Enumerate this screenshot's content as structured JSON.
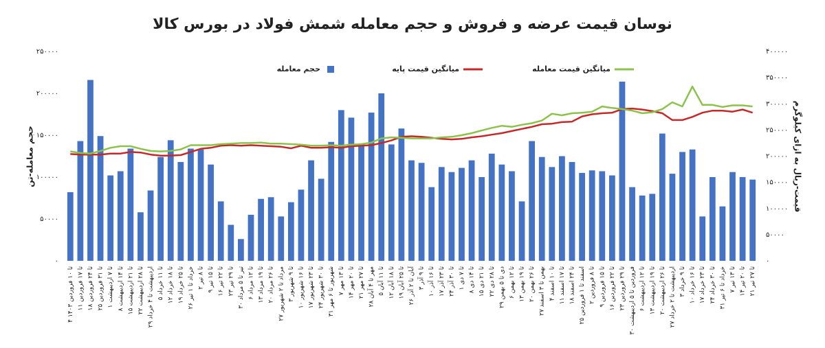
{
  "chart_data": {
    "type": "bar",
    "title": "نوسان قیمت عرضه و فروش و حجم معامله شمش فولاد در بورس کالا",
    "y_label": "حجم معامله-تن",
    "y2_label": "قیمت-ریال به ازای کیلوگرم",
    "categories": [
      "۴ تا ۱۰ فروردین ۱۴۰۳",
      "۱۱ تا ۱۷ فروردین",
      "۱۸ تا ۲۴ فروردین",
      "۲۵ تا ۳۱ فروردین",
      "۱ تا ۷ اردیبهشت",
      "۸ تا ۱۴ اردیبهشت",
      "۱۵ تا ۲۱ اردیبهشت",
      "۲۲ تا ۲۸ اردیبهشت",
      "۲۹ اردیبهشت تا ۴ خرداد",
      "۵ تا ۱۱ خرداد",
      "۱۲ تا ۱۸ خرداد",
      "۱۹ تا ۲۵ خرداد",
      "۲۶ خرداد تا ۱ تیر",
      "۲ تا ۸ تیر",
      "۹ تا ۱۵ تیر",
      "۱۶ تا ۲۲ تیر",
      "۲۳ تا ۲۹ تیر",
      "۳۰ تیر تا ۵ مرداد",
      "۶ تا ۱۲ مرداد",
      "۱۳ تا ۱۹ مرداد",
      "۲۰ تا ۲۶ مرداد",
      "۲۷ مرداد تا ۲ شهریور",
      "۳ تا ۹ شهریور",
      "۱۰ تا ۱۶ شهریور",
      "۱۷ تا ۲۳ شهریور",
      "۲۴ تا ۳۰ شهریور",
      "۳۱ شهریور تا ۶ مهر",
      "۷ تا ۱۳ مهر",
      "۱۴ تا ۲۰ مهر",
      "۲۱ تا ۲۷ مهر",
      "۲۸ مهر تا ۴ آبان",
      "۵ تا ۱۱ آبان",
      "۱۲ تا ۱۸ آبان",
      "۱۹ تا ۲۵ آبان",
      "۲۶ آبان تا ۲ آذر",
      "۳ تا ۹ آذر",
      "۱۰ تا ۱۶ آذر",
      "۱۷ تا ۲۳ آذر",
      "۲۴ تا ۳۰ آذر",
      "۱ تا ۷ دی",
      "۸ تا ۱۴ دی",
      "۱۵ تا ۲۱ دی",
      "۲۲ تا ۲۸ دی",
      "۲۹ دی تا ۵ بهمن",
      "۶ تا ۱۲ بهمن",
      "۱۳ تا ۱۹ بهمن",
      "۲۰ تا ۲۶ بهمن",
      "۲۷ بهمن تا ۳ اسفند",
      "۴ تا ۱۰ اسفند",
      "۱۱ تا ۱۷ اسفند",
      "۱۸ تا ۲۴ اسفند",
      "۲۵ اسفند تا ۱ فروردین",
      "۲ تا ۸ فروردین",
      "۹ تا ۱۵ فروردین",
      "۱۶ تا ۲۲ فروردین",
      "۲۳ تا ۲۹ فروردین",
      "۳۰ فروردین تا ۵ اردیبهشت",
      "۶ تا ۱۲ اردیبهشت",
      "۱۳ تا ۱۹ اردیبهشت",
      "۲۰ تا ۲۶ اردیبهشت",
      "۲۷ اردیبهشت تا ۲ خرداد",
      "۳ تا ۹ خرداد",
      "۱۰ تا ۱۶ خرداد",
      "۱۷ تا ۲۳ خرداد",
      "۲۴ تا ۳۰ خرداد",
      "۳۱ خرداد تا ۶ تیر",
      "۷ تا ۱۳ تیر",
      "۱۴ تا ۲۰ تیر",
      "۲۱ تا ۲۷ تیر"
    ],
    "series": [
      {
        "name": "حجم معامله",
        "type": "bar",
        "axis": "y",
        "color": "#4472c4",
        "values": [
          82000,
          143000,
          216000,
          149000,
          102000,
          107000,
          134000,
          58000,
          84000,
          124000,
          144000,
          118000,
          134000,
          133000,
          115000,
          71000,
          43000,
          26000,
          55000,
          74000,
          76000,
          53000,
          70000,
          85000,
          120000,
          98000,
          142000,
          180000,
          171000,
          139000,
          177000,
          200000,
          139000,
          158000,
          120000,
          117000,
          88000,
          112000,
          106000,
          111000,
          120000,
          100000,
          128000,
          115000,
          107000,
          71000,
          143000,
          124000,
          112000,
          125000,
          118000,
          105000,
          108000,
          107000,
          102000,
          214000,
          88000,
          78000,
          80000,
          152000,
          104000,
          130000,
          133000,
          53000,
          100000,
          65000,
          106000,
          100000,
          97000
        ]
      },
      {
        "name": "میانگین قیمت پایه",
        "type": "line",
        "axis": "y2",
        "color": "#c62828",
        "values": [
          204000,
          203000,
          203000,
          203000,
          205000,
          205000,
          208000,
          207000,
          203000,
          201000,
          201000,
          202000,
          208000,
          214000,
          216000,
          220000,
          221000,
          220000,
          221000,
          220000,
          219000,
          218000,
          215000,
          220000,
          216000,
          216000,
          217000,
          216000,
          219000,
          220000,
          221000,
          225000,
          230000,
          237000,
          238000,
          237000,
          235000,
          233000,
          232000,
          233000,
          236000,
          238000,
          241000,
          244000,
          248000,
          252000,
          256000,
          261000,
          262000,
          265000,
          266000,
          276000,
          280000,
          282000,
          283000,
          290000,
          291000,
          289000,
          286000,
          282000,
          269000,
          269000,
          275000,
          283000,
          287000,
          287000,
          285000,
          289000,
          283000
        ]
      },
      {
        "name": "میانگین قیمت معامله",
        "type": "line",
        "axis": "y2",
        "color": "#8bc34a",
        "values": [
          209000,
          206000,
          205000,
          210000,
          216000,
          219000,
          219000,
          214000,
          210000,
          209000,
          210000,
          213000,
          221000,
          221000,
          221000,
          223000,
          224000,
          225000,
          225000,
          226000,
          224000,
          224000,
          223000,
          222000,
          220000,
          220000,
          221000,
          220000,
          222000,
          223000,
          226000,
          234000,
          236000,
          235000,
          234000,
          234000,
          234000,
          236000,
          237000,
          240000,
          244000,
          249000,
          254000,
          258000,
          256000,
          260000,
          263000,
          268000,
          281000,
          278000,
          282000,
          283000,
          285000,
          295000,
          292000,
          290000,
          287000,
          282000,
          284000,
          290000,
          303000,
          295000,
          333000,
          298000,
          298000,
          294000,
          297000,
          297000,
          295000
        ]
      }
    ],
    "ylim": [
      0,
      250000
    ],
    "yticks": [
      {
        "value": 0,
        "label": "۰"
      },
      {
        "value": 50000,
        "label": "۵۰۰۰۰"
      },
      {
        "value": 100000,
        "label": "۱۰۰۰۰۰"
      },
      {
        "value": 150000,
        "label": "۱۵۰۰۰۰"
      },
      {
        "value": 200000,
        "label": "۲۰۰۰۰۰"
      },
      {
        "value": 250000,
        "label": "۲۵۰۰۰۰"
      }
    ],
    "y2lim": [
      0,
      400000
    ],
    "y2ticks": [
      {
        "value": 0,
        "label": "۰"
      },
      {
        "value": 50000,
        "label": "۵۰۰۰۰"
      },
      {
        "value": 100000,
        "label": "۱۰۰۰۰۰"
      },
      {
        "value": 150000,
        "label": "۱۵۰۰۰۰"
      },
      {
        "value": 200000,
        "label": "۲۰۰۰۰۰"
      },
      {
        "value": 250000,
        "label": "۲۵۰۰۰۰"
      },
      {
        "value": 300000,
        "label": "۳۰۰۰۰۰"
      },
      {
        "value": 350000,
        "label": "۳۵۰۰۰۰"
      },
      {
        "value": 400000,
        "label": "۴۰۰۰۰۰"
      }
    ]
  }
}
